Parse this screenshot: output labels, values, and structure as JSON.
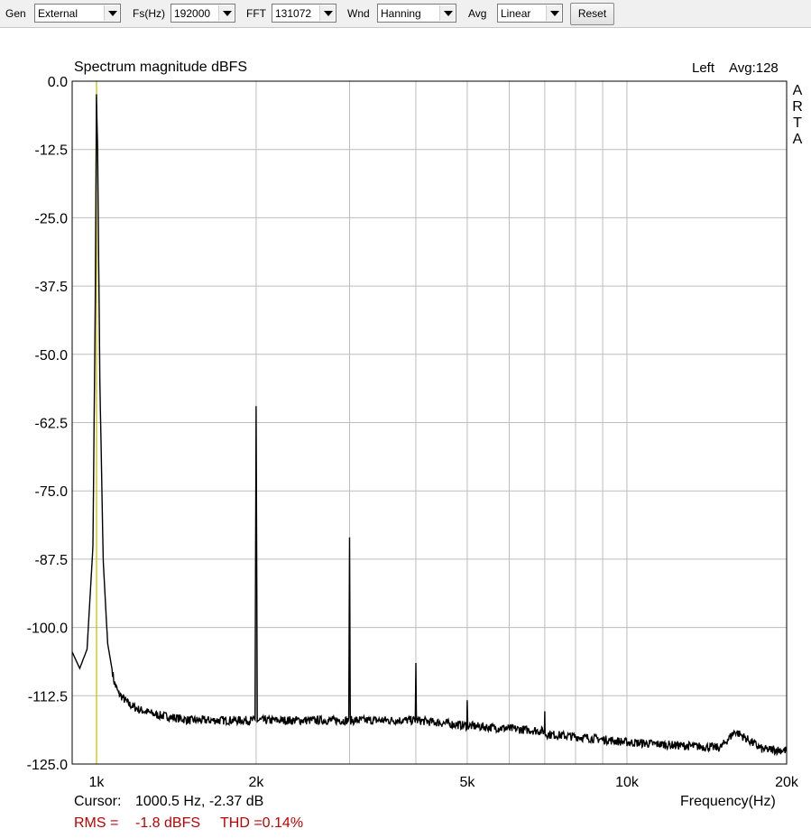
{
  "toolbar": {
    "gen_label": "Gen",
    "gen_value": "External",
    "fs_label": "Fs(Hz)",
    "fs_value": "192000",
    "fft_label": "FFT",
    "fft_value": "131072",
    "wnd_label": "Wnd",
    "wnd_value": "Hanning",
    "avg_label": "Avg",
    "avg_value": "Linear",
    "reset_label": "Reset"
  },
  "chart_data": {
    "type": "line",
    "title": "Spectrum magnitude dBFS",
    "channel": "Left",
    "avg_text": "Avg:128",
    "side_letters": [
      "A",
      "R",
      "T",
      "A"
    ],
    "xlabel": "Frequency(Hz)",
    "ylabel": "",
    "x_scale": "log",
    "xlim": [
      900,
      20000
    ],
    "ylim": [
      -125,
      0
    ],
    "yticks": [
      0,
      -12.5,
      -25,
      -37.5,
      -50,
      -62.5,
      -75,
      -87.5,
      -100,
      -112.5,
      -125
    ],
    "ytick_labels": [
      "0.0",
      "-12.5",
      "-25.0",
      "-37.5",
      "-50.0",
      "-62.5",
      "-75.0",
      "-87.5",
      "-100.0",
      "-112.5",
      "-125.0"
    ],
    "xticks": [
      1000,
      2000,
      5000,
      10000,
      20000
    ],
    "xtick_labels": [
      "1k",
      "2k",
      "5k",
      "10k",
      "20k"
    ],
    "minor_x_gridlines": [
      1000,
      2000,
      3000,
      4000,
      5000,
      6000,
      7000,
      8000,
      9000,
      10000,
      20000
    ],
    "grid": true,
    "cursor_freq": 1000.5,
    "series": [
      {
        "x": [
          900,
          930,
          960,
          985,
          995,
          1000,
          1005,
          1015,
          1030,
          1050,
          1080,
          1100,
          1150,
          1200,
          1300,
          1400,
          1500,
          1700,
          1900,
          1990,
          2000,
          2010,
          2100,
          2500,
          2990,
          3000,
          3010,
          3500,
          3990,
          4000,
          4010,
          4500,
          4990,
          5000,
          5010,
          6000,
          6990,
          7000,
          7010,
          8000,
          9000,
          10000,
          12000,
          15000,
          16000,
          18000,
          20000
        ],
        "y": [
          -104.5,
          -107.5,
          -104,
          -85,
          -40,
          -2.4,
          -12,
          -55,
          -88,
          -103,
          -110,
          -112,
          -114,
          -115,
          -116,
          -116.5,
          -117,
          -117,
          -117,
          -117,
          -59.5,
          -117,
          -117,
          -117,
          -117,
          -83.5,
          -117,
          -117,
          -117,
          -106.5,
          -117,
          -117.5,
          -118,
          -113.5,
          -118,
          -118.5,
          -119,
          -115,
          -119.5,
          -120,
          -120.5,
          -121,
          -121.5,
          -122,
          -119,
          -122.3,
          -122.5
        ]
      }
    ]
  },
  "cursor_label": "Cursor:",
  "cursor_value": "1000.5 Hz, -2.37 dB",
  "rms_label": "RMS =",
  "rms_value": "-1.8 dBFS",
  "thd_value": "THD =0.14%",
  "colors": {
    "trace": "#000000",
    "cursor": "#c8c000",
    "grid": "#bdbdbd",
    "stats": "#c00000"
  }
}
